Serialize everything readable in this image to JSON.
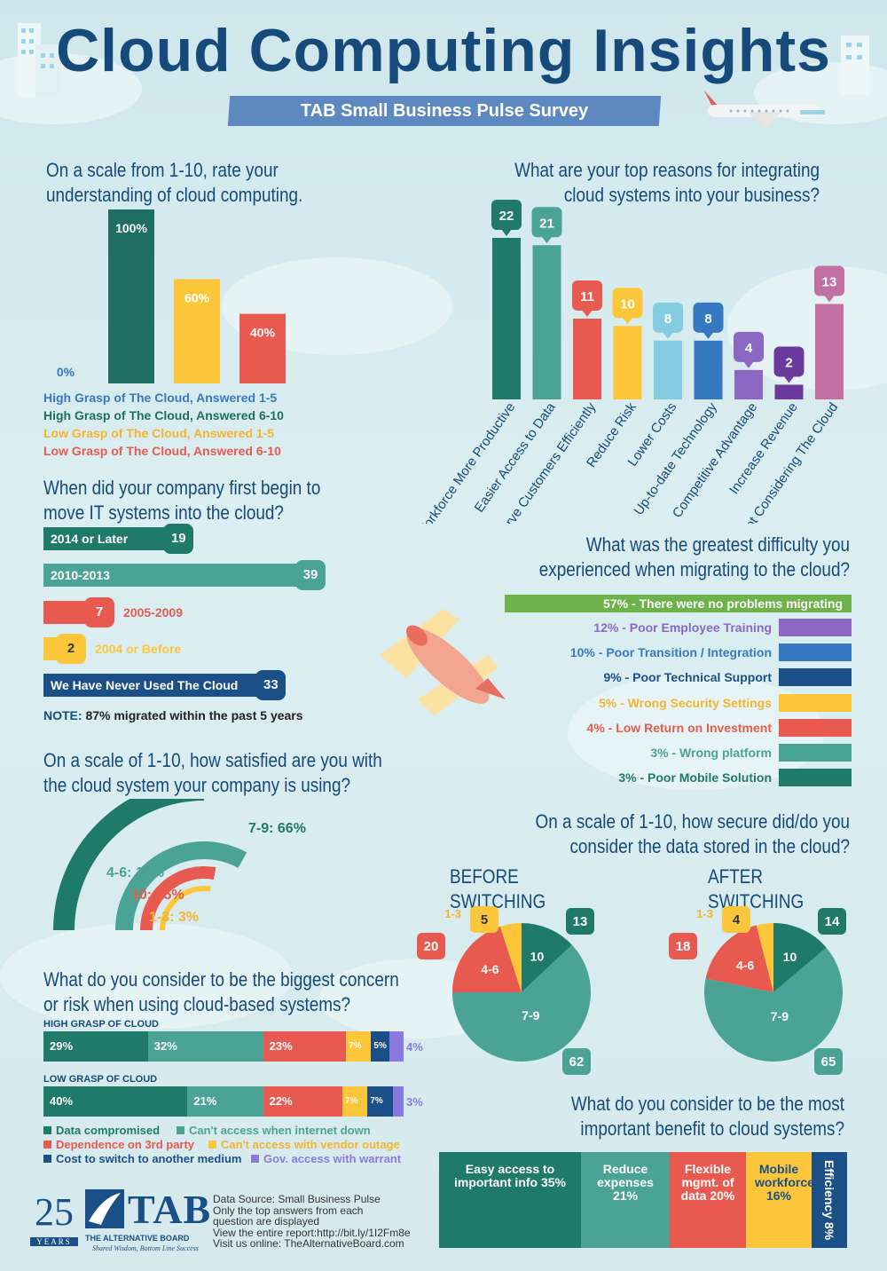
{
  "header": {
    "title": "Cloud Computing Insights",
    "subtitle": "TAB Small Business Pulse Survey"
  },
  "colors": {
    "dark_teal": "#1f7a6a",
    "teal": "#4ba396",
    "navy_teal": "#1d6f83",
    "yellow": "#fcc63a",
    "red": "#e85a4f",
    "light_blue": "#84cde0",
    "blue": "#3579c3",
    "purple": "#8a68c4",
    "dark_purple": "#6a3b9c",
    "pink": "#c270a3",
    "green": "#6db24a",
    "navy": "#1b4f88"
  },
  "q1": {
    "question_line1": "On a scale from 1-10, rate your",
    "question_line2": "understanding of cloud computing.",
    "legend": [
      {
        "label": "High Grasp of The Cloud, Answered 1-5",
        "color": "#3579c3"
      },
      {
        "label": "High Grasp of The Cloud, Answered 6-10",
        "color": "#1f6e64"
      },
      {
        "label": "Low Grasp of The Cloud, Answered 1-5",
        "color": "#f4b431"
      },
      {
        "label": "Low Grasp of The Cloud, Answered 6-10",
        "color": "#e85a4f"
      }
    ]
  },
  "q2": {
    "question_line1": "What are your top reasons for integrating",
    "question_line2": "cloud systems into your business?"
  },
  "q3": {
    "question_line1": "When did your company first begin to",
    "question_line2": "move IT systems into the cloud?",
    "bars": [
      {
        "label": "2014 or Later",
        "value": "19",
        "color": "#1f7a6a",
        "label_inside": true
      },
      {
        "label": "2010-2013",
        "value": "39",
        "color": "#4ba396",
        "label_inside": true
      },
      {
        "label": "2005-2009",
        "value": "7",
        "color": "#e85a4f",
        "label_inside": false
      },
      {
        "label": "2004 or Before",
        "value": "2",
        "color": "#fcc63a",
        "label_inside": false
      },
      {
        "label": "We Have Never Used The Cloud",
        "value": "33",
        "color": "#1b4f88",
        "label_inside": true
      }
    ],
    "note_bold": "NOTE:",
    "note": " 87% migrated within the past 5 years"
  },
  "q4": {
    "question_line1": "What was the greatest difficulty you",
    "question_line2": "experienced when migrating to the cloud?",
    "items": [
      {
        "text": "57% - There were no problems migrating",
        "color": "#6db24a"
      },
      {
        "text": "12% - Poor Employee Training",
        "color": "#8a68c4"
      },
      {
        "text": "10% - Poor Transition / Integration",
        "color": "#3579c3"
      },
      {
        "text": "9% - Poor Technical Support",
        "color": "#1b4f88"
      },
      {
        "text": "5% - Wrong Security Settings",
        "color": "#fcc63a"
      },
      {
        "text": "4% - Low Return on Investment",
        "color": "#e85a4f"
      },
      {
        "text": "3% - Wrong platform",
        "color": "#4ba396"
      },
      {
        "text": "3% - Poor Mobile Solution",
        "color": "#1f7a6a"
      }
    ]
  },
  "q5": {
    "question_line1": "On a scale of 1-10, how satisfied are you with",
    "question_line2": "the cloud system your company is using?"
  },
  "q6": {
    "question_line1": "On a scale of 1-10, how secure did/do you",
    "question_line2": "consider the data stored in the cloud?",
    "before_title": "BEFORE SWITCHING",
    "after_title": "AFTER SWITCHING"
  },
  "q7": {
    "question_line1": "What do you consider to be the biggest concern",
    "question_line2": "or risk when using cloud-based systems?",
    "legend": [
      {
        "label": "Data compromised",
        "color": "#1f7a6a"
      },
      {
        "label": "Can't access when internet down",
        "color": "#4ba396"
      },
      {
        "label": "Dependence on 3rd party",
        "color": "#e85a4f"
      },
      {
        "label": "Can't access with vendor outage",
        "color": "#fcc63a"
      },
      {
        "label": "Cost to switch to another medium",
        "color": "#1b4f88"
      },
      {
        "label": "Gov. access with warrant",
        "color": "#8a7ae0"
      }
    ]
  },
  "q8": {
    "question_line1": "What do you consider to be the most",
    "question_line2": "important benefit to cloud systems?",
    "items": [
      {
        "text": "Easy access to important info 35%",
        "color": "#1f7a6a"
      },
      {
        "text": "Reduce expenses 21%",
        "color": "#4ba396"
      },
      {
        "text": "Flexible mgmt. of data 20%",
        "color": "#e85a4f"
      },
      {
        "text": "Mobile workforce 16%",
        "color": "#fcc63a"
      },
      {
        "text": "Efficiency 8%",
        "color": "#1b4f88"
      }
    ]
  },
  "footer": {
    "years_number": "25",
    "years_label": "YEARS",
    "logo_text": "TAB",
    "logo_name": "THE ALTERNATIVE BOARD",
    "logo_tagline": "Shared Wisdom, Bottom Line Success",
    "source_lines": [
      "Data Source: Small Business Pulse",
      "Only the top answers from each",
      "question are displayed",
      "View the entire report:http://bit.ly/1I2Fm8e",
      "Visit us online: TheAlternativeBoard.com"
    ]
  },
  "chart_data": [
    {
      "type": "bar",
      "categories": [
        "High Grasp of The Cloud, Answered 1-5",
        "High Grasp of The Cloud, Answered 6-10",
        "Low Grasp of The Cloud, Answered 1-5",
        "Low Grasp of The Cloud, Answered 6-10"
      ],
      "values": [
        0,
        100,
        60,
        40
      ],
      "value_labels": [
        "0%",
        "100%",
        "60%",
        "40%"
      ],
      "ylim": [
        0,
        100
      ]
    },
    {
      "type": "bar",
      "categories": [
        "Workforce More Productive",
        "Easier Access to Data",
        "Serve Customers Efficiently",
        "Reduce Risk",
        "Lower Costs",
        "Up-to-date Technology",
        "Competitive Advantage",
        "Increase Revenue",
        "Not Considering The Cloud"
      ],
      "values": [
        22,
        21,
        11,
        10,
        8,
        8,
        4,
        2,
        13
      ],
      "colors": [
        "#1f7a6a",
        "#4ba396",
        "#e85a4f",
        "#fcc63a",
        "#84cde0",
        "#3579c3",
        "#8a68c4",
        "#6a3b9c",
        "#c270a3"
      ],
      "ylim": [
        0,
        22
      ]
    },
    {
      "type": "bar",
      "orientation": "horizontal",
      "categories": [
        "2014 or Later",
        "2010-2013",
        "2005-2009",
        "2004 or Before",
        "We Have Never Used The Cloud"
      ],
      "values": [
        19,
        39,
        7,
        2,
        33
      ]
    },
    {
      "type": "pie",
      "style": "concentric arcs",
      "categories": [
        "7-9",
        "4-6",
        "10",
        "1-3"
      ],
      "values": [
        66,
        17,
        15,
        3
      ],
      "labels": [
        "7-9: 66%",
        "4-6: 17%",
        "10: 15%",
        "1-3: 3%"
      ],
      "colors": [
        "#1f7a6a",
        "#4ba396",
        "#e85a4f",
        "#fcc63a"
      ]
    },
    {
      "type": "pie",
      "title": "BEFORE SWITCHING",
      "categories": [
        "10",
        "7-9",
        "4-6",
        "1-3"
      ],
      "values": [
        13,
        62,
        20,
        5
      ],
      "colors": [
        "#1f7a6a",
        "#4ba396",
        "#e85a4f",
        "#fcc63a"
      ]
    },
    {
      "type": "pie",
      "title": "AFTER SWITCHING",
      "categories": [
        "10",
        "7-9",
        "4-6",
        "1-3"
      ],
      "values": [
        14,
        65,
        18,
        4
      ],
      "colors": [
        "#1f7a6a",
        "#4ba396",
        "#e85a4f",
        "#fcc63a"
      ]
    },
    {
      "type": "bar",
      "orientation": "horizontal-stacked",
      "categories": [
        "HIGH GRASP OF CLOUD",
        "LOW GRASP OF CLOUD"
      ],
      "series": [
        {
          "name": "Data compromised",
          "values": [
            29,
            40
          ]
        },
        {
          "name": "Can't access when internet down",
          "values": [
            32,
            21
          ]
        },
        {
          "name": "Dependence on 3rd party",
          "values": [
            23,
            22
          ]
        },
        {
          "name": "Can't access with vendor outage",
          "values": [
            7,
            7
          ]
        },
        {
          "name": "Cost to switch to another medium",
          "values": [
            5,
            7
          ]
        },
        {
          "name": "Gov. access with warrant",
          "values": [
            4,
            3
          ]
        }
      ]
    },
    {
      "type": "bar",
      "orientation": "horizontal-stacked",
      "categories": [
        "Easy access to important info",
        "Reduce expenses",
        "Flexible mgmt. of data",
        "Mobile workforce",
        "Efficiency"
      ],
      "values": [
        35,
        21,
        20,
        16,
        8
      ]
    }
  ]
}
